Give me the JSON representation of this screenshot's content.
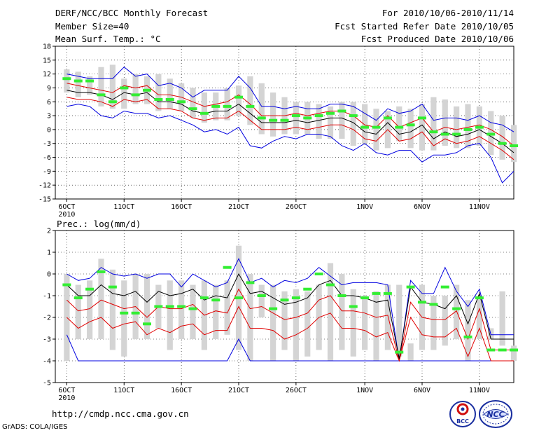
{
  "header": {
    "title": "DERF/NCC/BCC Monthly Forecast",
    "member_size": "Member Size=40",
    "variable": "Mean Surf. Temp.: °C",
    "period": "For 2010/10/06-2010/11/14",
    "started": "Fcst Started Refer Date 2010/10/05",
    "produced": "Fcst Produced Date 2010/10/06"
  },
  "footer": {
    "url": "http://cmdp.ncc.cma.gov.cn",
    "credit": "GrADS: COLA/IGES",
    "logo_bcc_text": "BCC",
    "logo_ncc_text": "NCC"
  },
  "colors": {
    "ensemble_box": "#d4d4d4",
    "mean_line": "#000000",
    "spread_lines": "#e00000",
    "envelope_lines": "#0000e0",
    "median_marks": "#33ee33",
    "grid": "#000000"
  },
  "chart_data": [
    {
      "type": "line",
      "name": "temperature",
      "ylabel": "Mean Surf. Temp.: °C",
      "ylim": [
        -15,
        18
      ],
      "yticks": [
        -15,
        -12,
        -9,
        -6,
        -3,
        0,
        3,
        6,
        9,
        12,
        15,
        18
      ],
      "x_range": [
        0,
        40
      ],
      "x_ticks": [
        {
          "x": 1,
          "label": "6OCT"
        },
        {
          "x": 6,
          "label": "11OCT"
        },
        {
          "x": 11,
          "label": "16OCT"
        },
        {
          "x": 16,
          "label": "21OCT"
        },
        {
          "x": 21,
          "label": "26OCT"
        },
        {
          "x": 27,
          "label": "1NOV"
        },
        {
          "x": 32,
          "label": "6NOV"
        },
        {
          "x": 37,
          "label": "11NOV"
        }
      ],
      "year_label": "2010",
      "gridlines": "dotted",
      "days": [
        1,
        2,
        3,
        4,
        5,
        6,
        7,
        8,
        9,
        10,
        11,
        12,
        13,
        14,
        15,
        16,
        17,
        18,
        19,
        20,
        21,
        22,
        23,
        24,
        25,
        26,
        27,
        28,
        29,
        30,
        31,
        32,
        33,
        34,
        35,
        36,
        37,
        38,
        39,
        40
      ],
      "box_high": [
        13,
        12.5,
        11.5,
        13.5,
        14,
        11,
        12,
        11.5,
        12,
        11,
        10,
        9,
        8,
        8,
        9,
        9.5,
        11.5,
        10,
        8,
        7,
        6,
        6,
        5.5,
        5,
        6,
        6,
        5.5,
        4.5,
        4,
        5,
        4.5,
        5.5,
        7,
        6.5,
        5,
        5.5,
        5,
        4,
        3,
        1
      ],
      "box_low": [
        8,
        7,
        7.5,
        5,
        4.5,
        4.5,
        5.5,
        5.5,
        4,
        4.5,
        4,
        2.5,
        1.5,
        2,
        2,
        3,
        1,
        -1,
        -1.5,
        -1,
        -1,
        -1,
        -2,
        -2,
        -2,
        -3.5,
        -3,
        -4.5,
        -4,
        -2.5,
        -4,
        -4.5,
        -4.5,
        -3.5,
        -4,
        -4,
        -3.5,
        -5.5,
        -6.5,
        -7
      ],
      "median": [
        11,
        10.5,
        10.5,
        7.5,
        6,
        9,
        7.5,
        8.5,
        6.5,
        6.5,
        6,
        4.5,
        3.5,
        5,
        5,
        7,
        5,
        2.5,
        2,
        2,
        3,
        2.5,
        3,
        3.5,
        4,
        3,
        0.5,
        0.5,
        2.5,
        0.5,
        1,
        2.5,
        -0.5,
        -1,
        -1,
        0,
        0.5,
        -1,
        -3,
        -3.5
      ],
      "mean": [
        8.5,
        8,
        8,
        7.5,
        6.5,
        8,
        7.5,
        8,
        6,
        6,
        5.5,
        4,
        3.5,
        4,
        4,
        5.5,
        3.5,
        1.5,
        1.5,
        1.5,
        2,
        1.5,
        2,
        2.5,
        2.5,
        1.5,
        -0.5,
        -1,
        1.5,
        -1,
        -0.5,
        1,
        -2,
        -0.5,
        -1.5,
        -1,
        0,
        -1.5,
        -3,
        -5
      ],
      "upper_spread": [
        10,
        9.5,
        9,
        8.5,
        8,
        9.5,
        9,
        9.5,
        7.5,
        7.5,
        7,
        6,
        5,
        5.5,
        6,
        7.5,
        5.5,
        3,
        3,
        3,
        3.5,
        3,
        3.5,
        4,
        4,
        3,
        1,
        0.5,
        3,
        0.5,
        1.5,
        2.5,
        -0.5,
        0.5,
        0,
        0.5,
        1,
        0,
        -1.5,
        -3.5
      ],
      "lower_spread": [
        7,
        6.5,
        6.5,
        6,
        5,
        6.5,
        6,
        6.5,
        4.5,
        4.5,
        4,
        2.5,
        2,
        2.5,
        2.5,
        4,
        2,
        0,
        0,
        0,
        0.5,
        0,
        0.5,
        1,
        1,
        0,
        -2,
        -2.5,
        0,
        -2.5,
        -2,
        -0.5,
        -3.5,
        -2,
        -3,
        -2.5,
        -1.5,
        -3,
        -4.5,
        -6.5
      ],
      "upper_envelope": [
        12,
        11.5,
        11,
        11,
        11,
        13.5,
        11.5,
        12,
        9.5,
        10,
        9,
        7,
        8.5,
        8.5,
        8.5,
        11.5,
        9,
        5,
        5,
        4.5,
        5,
        4.5,
        4.5,
        5.5,
        5.5,
        5,
        3.5,
        2,
        4.5,
        3.5,
        4,
        5.5,
        2,
        2.5,
        2.5,
        2,
        3,
        1.5,
        1,
        -0.5
      ],
      "lower_envelope": [
        5,
        5.5,
        5,
        3,
        2.5,
        4,
        3.5,
        3.5,
        2.5,
        3,
        2,
        1,
        -0.5,
        0,
        -1,
        0.5,
        -3.5,
        -4,
        -2.5,
        -1.5,
        -2,
        -1,
        -1,
        -1.5,
        -3.5,
        -4.5,
        -3,
        -5,
        -5.5,
        -4.5,
        -4.5,
        -7,
        -5.5,
        -5.5,
        -5,
        -3.5,
        -3,
        -6,
        -11.5,
        -9
      ]
    },
    {
      "type": "line",
      "name": "precipitation",
      "ylabel": "Prec.: log(mm/d)",
      "ylim": [
        -5,
        2
      ],
      "yticks": [
        -5,
        -4,
        -3,
        -2,
        -1,
        0,
        1,
        2
      ],
      "x_range": [
        0,
        40
      ],
      "x_ticks": [
        {
          "x": 1,
          "label": "6OCT"
        },
        {
          "x": 6,
          "label": "11OCT"
        },
        {
          "x": 11,
          "label": "16OCT"
        },
        {
          "x": 16,
          "label": "21OCT"
        },
        {
          "x": 21,
          "label": "26OCT"
        },
        {
          "x": 27,
          "label": "1NOV"
        },
        {
          "x": 32,
          "label": "6NOV"
        },
        {
          "x": 37,
          "label": "11NOV"
        }
      ],
      "year_label": "2010",
      "gridlines": "dotted",
      "days": [
        1,
        2,
        3,
        4,
        5,
        6,
        7,
        8,
        9,
        10,
        11,
        12,
        13,
        14,
        15,
        16,
        17,
        18,
        19,
        20,
        21,
        22,
        23,
        24,
        25,
        26,
        27,
        28,
        29,
        30,
        31,
        32,
        33,
        34,
        35,
        36,
        37,
        38,
        39,
        40
      ],
      "box_high": [
        0,
        -0.5,
        -0.3,
        0.7,
        0.2,
        -0.3,
        0,
        0,
        -0.5,
        -0.3,
        -0.3,
        -0.5,
        -0.3,
        -0.5,
        -0.3,
        1.3,
        0,
        -0.5,
        -0.5,
        -0.8,
        -0.7,
        -0.8,
        -0.5,
        0.5,
        0,
        -0.7,
        -1,
        -0.8,
        -0.5,
        -0.5,
        -3.2,
        -0.5,
        -1,
        -1,
        -0.5,
        -1.2,
        -1,
        -2.5,
        -0.8,
        -3.3
      ],
      "box_low": [
        -4,
        -3,
        -3,
        -3,
        -3.5,
        -3.8,
        -3,
        -3,
        -2.5,
        -3.5,
        -3,
        -3,
        -3.5,
        -3,
        -2.8,
        -3.5,
        -4,
        -2,
        -4,
        -3.5,
        -4,
        -3.8,
        -3.5,
        -4,
        -3.5,
        -3.8,
        -3.5,
        -4,
        -3.5,
        -3.8,
        -4,
        -3.5,
        -3.5,
        -3.3,
        -3,
        -4,
        -3,
        -3,
        -3.3,
        -4
      ],
      "median": [
        -0.5,
        -1.1,
        -0.7,
        0.1,
        -0.6,
        -1.8,
        -1.8,
        -2.3,
        -1.5,
        -1.5,
        -1.5,
        -1.6,
        -1.1,
        -1.2,
        0.3,
        -1.1,
        -0.4,
        -1,
        -1.6,
        -1.2,
        -1.1,
        -0.7,
        0,
        -0.5,
        -1,
        -1.5,
        -1.1,
        -0.9,
        -0.9,
        -3.6,
        -0.6,
        -1.3,
        -1.4,
        -0.6,
        -1.6,
        -2.9,
        -1.1,
        -3.5,
        -3.5,
        -3.5
      ],
      "mean": [
        -0.5,
        -1,
        -1,
        -0.5,
        -0.9,
        -1,
        -0.8,
        -1.3,
        -0.8,
        -1,
        -0.9,
        -0.7,
        -1.2,
        -1,
        -1.1,
        0,
        -0.9,
        -0.8,
        -1.1,
        -1.4,
        -1.3,
        -1.1,
        -0.5,
        -0.3,
        -1,
        -1,
        -1.1,
        -1.3,
        -1.2,
        -3.9,
        -0.6,
        -1.3,
        -1.4,
        -1.6,
        -1,
        -2.3,
        -0.9,
        -3,
        -3,
        -3
      ],
      "upper_spread": [
        -1.2,
        -1.7,
        -1.6,
        -1.2,
        -1.4,
        -1.6,
        -1.5,
        -2,
        -1.5,
        -1.6,
        -1.6,
        -1.4,
        -1.9,
        -1.7,
        -1.8,
        -0.7,
        -1.6,
        -1.5,
        -1.8,
        -2.1,
        -2,
        -1.8,
        -1.2,
        -1,
        -1.7,
        -1.7,
        -1.8,
        -2,
        -1.9,
        -4,
        -1.3,
        -2,
        -2.1,
        -2.1,
        -1.7,
        -3,
        -1.6,
        -3.5,
        -3.5,
        -3.5
      ],
      "lower_spread": [
        -2,
        -2.5,
        -2.2,
        -2,
        -2.5,
        -2.3,
        -2.2,
        -2.8,
        -2.5,
        -2.7,
        -2.4,
        -2.3,
        -2.8,
        -2.6,
        -2.6,
        -1.5,
        -2.5,
        -2.5,
        -2.6,
        -3,
        -2.8,
        -2.5,
        -2,
        -1.8,
        -2.5,
        -2.5,
        -2.6,
        -2.9,
        -2.7,
        -4,
        -2,
        -2.8,
        -2.9,
        -2.9,
        -2.5,
        -3.8,
        -2.5,
        -4,
        -4,
        -4
      ],
      "upper_envelope": [
        0,
        -0.3,
        -0.2,
        0.3,
        0,
        -0.1,
        0,
        -0.2,
        0,
        0,
        -0.6,
        0,
        -0.3,
        -0.6,
        -0.4,
        0.7,
        -0.4,
        -0.2,
        -0.6,
        -0.3,
        -0.4,
        -0.2,
        0.3,
        -0.1,
        -0.5,
        -0.4,
        -0.4,
        -0.4,
        -0.5,
        -4,
        -0.3,
        -0.9,
        -0.9,
        0.3,
        -0.8,
        -1.5,
        -0.7,
        -2.8,
        -2.8,
        -2.8
      ],
      "lower_envelope": [
        -2.8,
        -4,
        -4,
        -4,
        -4,
        -4,
        -4,
        -4,
        -4,
        -4,
        -4,
        -4,
        -4,
        -4,
        -4,
        -3,
        -4,
        -4,
        -4,
        -4,
        -4,
        -4,
        -4,
        -4,
        -4,
        -4,
        -4,
        -4,
        -4,
        -4,
        -4,
        -4,
        -4,
        -4,
        -4,
        -4,
        -4,
        -4,
        -4,
        -4
      ]
    }
  ]
}
